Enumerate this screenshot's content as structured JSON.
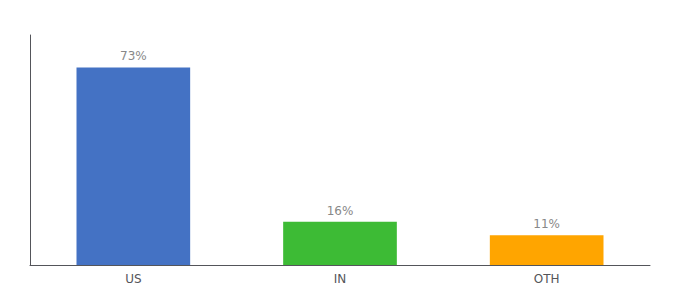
{
  "chart_data": {
    "type": "bar",
    "categories": [
      "US",
      "IN",
      "OTH"
    ],
    "values": [
      73,
      16,
      11
    ],
    "value_labels": [
      "73%",
      "16%",
      "11%"
    ],
    "colors": [
      "#4472c4",
      "#3dbb35",
      "#ffa500"
    ],
    "ylim": [
      0,
      85
    ],
    "data_labels": true,
    "tick_labels": "x",
    "grid": false
  }
}
